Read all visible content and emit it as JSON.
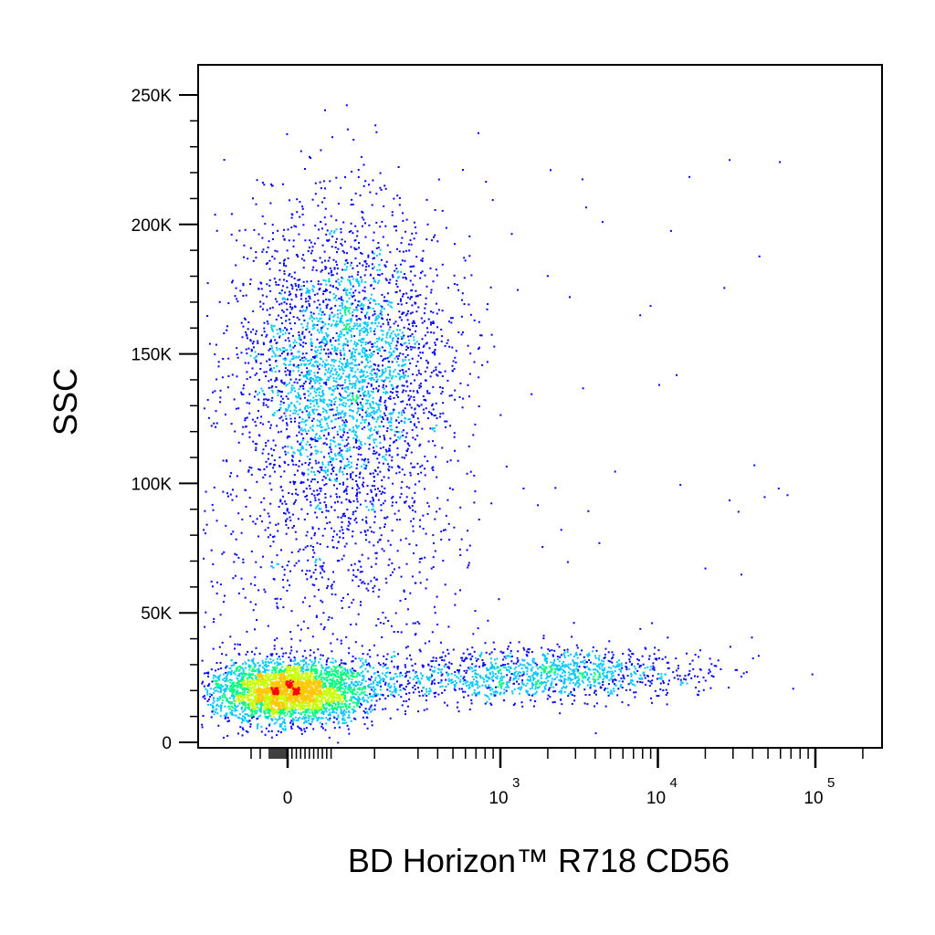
{
  "chart_data": {
    "type": "scatter",
    "title": "",
    "xlabel": "BD Horizon™ R718  CD56",
    "ylabel": "SSC",
    "x_scale": "biexponential",
    "y_scale": "linear",
    "xlim": [
      -200,
      200000
    ],
    "ylim": [
      -3000,
      260000
    ],
    "x_ticks": [
      {
        "value": 0,
        "label": "0"
      },
      {
        "value": 1000,
        "label": "10",
        "exponent": "3"
      },
      {
        "value": 10000,
        "label": "10",
        "exponent": "4"
      },
      {
        "value": 100000,
        "label": "10",
        "exponent": "5"
      }
    ],
    "y_ticks": [
      {
        "value": 0,
        "label": "0"
      },
      {
        "value": 50000,
        "label": "50K"
      },
      {
        "value": 100000,
        "label": "100K"
      },
      {
        "value": 150000,
        "label": "150K"
      },
      {
        "value": 200000,
        "label": "200K"
      },
      {
        "value": 250000,
        "label": "250K"
      }
    ],
    "grid": false,
    "legend": "none",
    "density_colormap": [
      "#0000ff",
      "#00c8ff",
      "#00ff80",
      "#c8ff00",
      "#ffc800",
      "#ff0000"
    ],
    "populations": [
      {
        "name": "",
        "x_center": 0,
        "y_center": 20000,
        "density": "very high",
        "count": 3200
      },
      {
        "name": "",
        "x_center": 20,
        "y_center": 145000,
        "density": "high",
        "count": 3400
      },
      {
        "name": "",
        "x_center": 2000,
        "y_center": 27000,
        "density": "medium",
        "count": 900
      },
      {
        "name": "",
        "x_center": 400,
        "y_center": 25000,
        "density": "low",
        "count": 500
      }
    ]
  }
}
